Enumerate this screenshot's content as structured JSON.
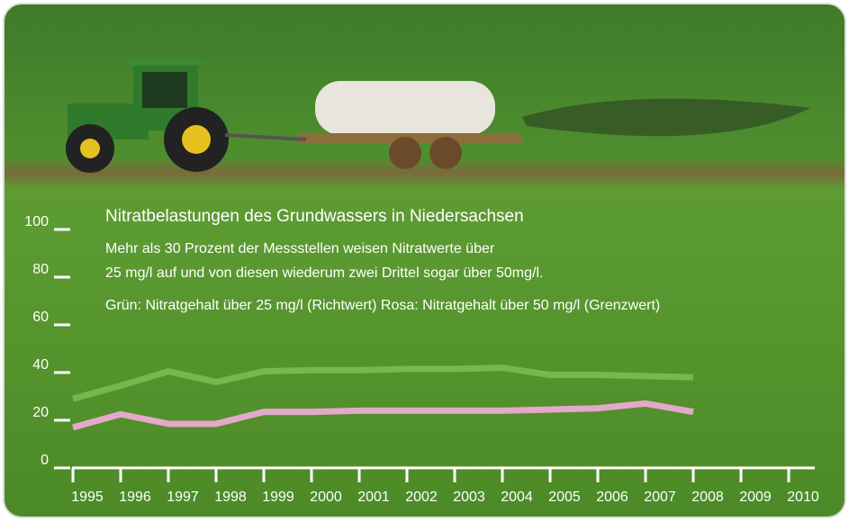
{
  "chart_data": {
    "type": "line",
    "title": "Nitratbelastungen des Grundwassers in Niedersachsen",
    "subtitle": [
      "Mehr als 30 Prozent der Messstellen weisen Nitratwerte über",
      "25 mg/l auf und von diesen wiederum zwei Drittel sogar über 50mg/l.",
      "Grün: Nitratgehalt über 25 mg/l (Richtwert) Rosa: Nitratgehalt über 50 mg/l (Grenzwert)"
    ],
    "x": [
      1995,
      1996,
      1997,
      1998,
      1999,
      2000,
      2001,
      2002,
      2003,
      2004,
      2005,
      2006,
      2007,
      2008
    ],
    "series": [
      {
        "color": "#74b94c",
        "values": [
          29,
          34.5,
          40.5,
          36,
          40.5,
          41,
          41,
          41.5,
          41.5,
          42,
          39,
          39,
          38.5,
          38
        ]
      },
      {
        "color": "#e3a9c9",
        "values": [
          17,
          22.5,
          18.5,
          18.5,
          23.5,
          23.5,
          24,
          24,
          24,
          24,
          24.5,
          25,
          27,
          23.5
        ]
      }
    ],
    "xlim": [
      1995,
      2010
    ],
    "xticks": [
      1995,
      1996,
      1997,
      1998,
      1999,
      2000,
      2001,
      2002,
      2003,
      2004,
      2005,
      2006,
      2007,
      2008,
      2009,
      2010
    ],
    "ylim": [
      0,
      100
    ],
    "yticks": [
      0,
      20,
      40,
      60,
      80,
      100
    ]
  }
}
